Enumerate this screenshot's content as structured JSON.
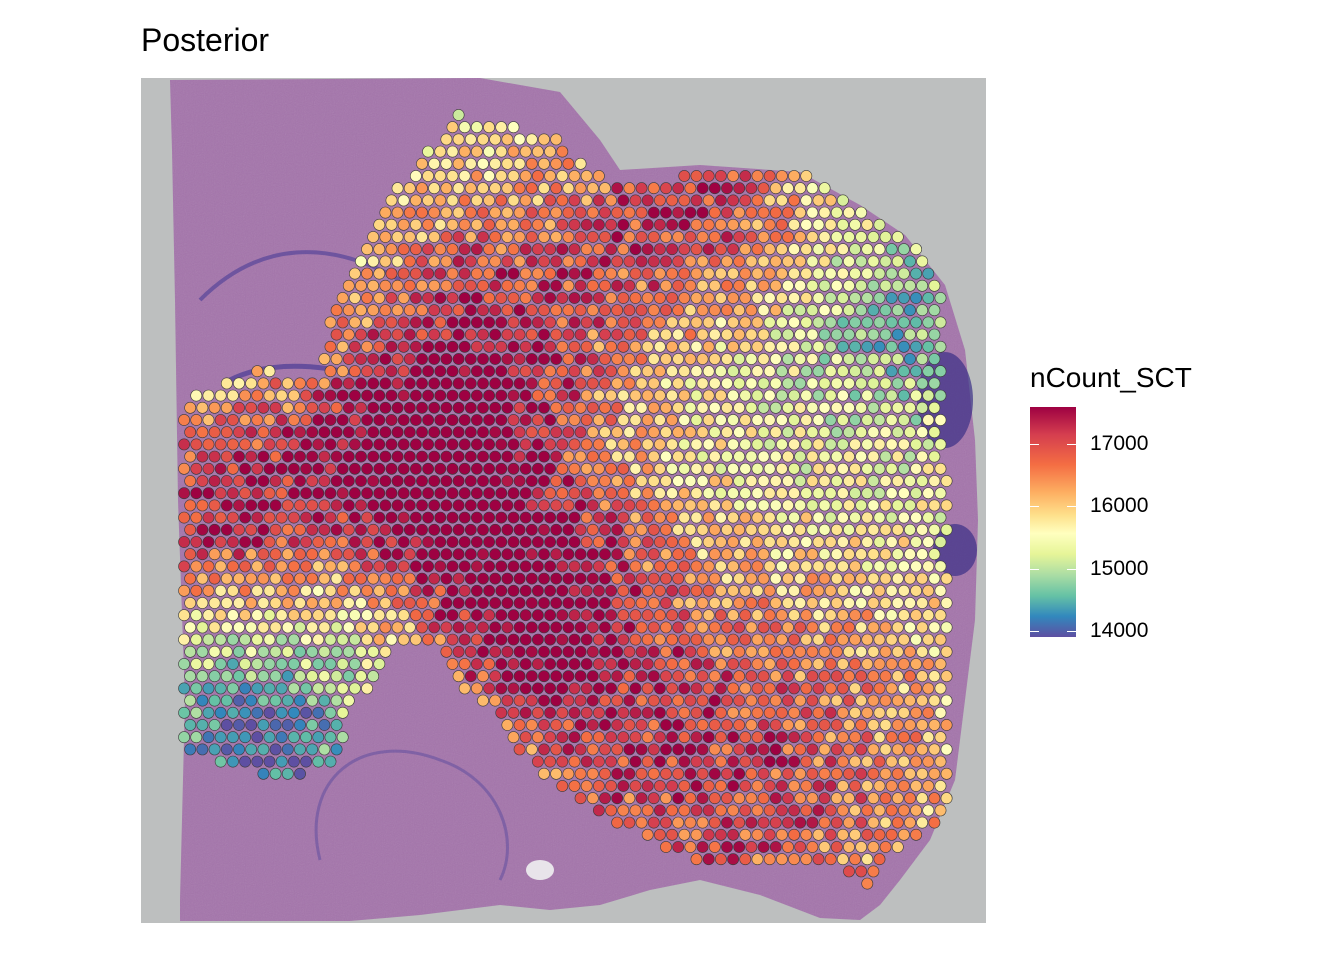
{
  "title": "Posterior",
  "colors": {
    "background_tissue_panel": "#bcbfbf",
    "tissue": "#a46fb0",
    "palette": [
      "#5e4fa2",
      "#3288bd",
      "#66c2a5",
      "#abdda4",
      "#e6f598",
      "#ffffbf",
      "#fee08b",
      "#fdae61",
      "#f46d43",
      "#d53e4f",
      "#9e0142"
    ]
  },
  "chart_data": {
    "type": "scatter",
    "title": "Posterior",
    "xlabel": "",
    "ylabel": "",
    "legend": {
      "title": "nCount_SCT",
      "placement": "right",
      "range": [
        13900,
        17600
      ],
      "ticks": [
        {
          "value": 17000,
          "label": "17000"
        },
        {
          "value": 16000,
          "label": "16000"
        },
        {
          "value": 15000,
          "label": "15000"
        },
        {
          "value": 14000,
          "label": "14000"
        }
      ]
    },
    "grid": false,
    "background": "H&E tissue image (mouse brain, posterior section)",
    "spot_value_summary": {
      "min_approx": 13900,
      "max_approx": 17600,
      "high_regions": [
        "center-left cortex",
        "lower-right quadrant",
        "upper-right strip"
      ],
      "low_regions": [
        "lower-left corner",
        "right edge near ventricle"
      ]
    }
  }
}
